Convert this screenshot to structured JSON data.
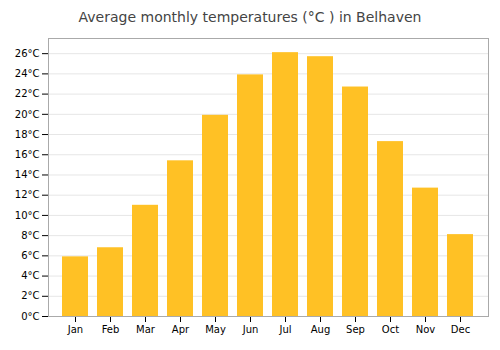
{
  "chart_data": {
    "type": "bar",
    "title": "Average monthly temperatures (°C ) in Belhaven",
    "categories": [
      "Jan",
      "Feb",
      "Mar",
      "Apr",
      "May",
      "Jun",
      "Jul",
      "Aug",
      "Sep",
      "Oct",
      "Nov",
      "Dec"
    ],
    "values": [
      5.9,
      6.8,
      11.0,
      15.4,
      19.9,
      23.9,
      26.1,
      25.7,
      22.7,
      17.3,
      12.7,
      8.1
    ],
    "color": "#FFC125",
    "ylim": [
      0,
      27.5
    ],
    "yticks": [
      {
        "value": 0,
        "label": "0°C"
      },
      {
        "value": 2,
        "label": "2°C"
      },
      {
        "value": 4,
        "label": "4°C"
      },
      {
        "value": 6,
        "label": "6°C"
      },
      {
        "value": 8,
        "label": "8°C"
      },
      {
        "value": 10,
        "label": "10°C"
      },
      {
        "value": 12,
        "label": "12°C"
      },
      {
        "value": 14,
        "label": "14°C"
      },
      {
        "value": 16,
        "label": "16°C"
      },
      {
        "value": 18,
        "label": "18°C"
      },
      {
        "value": 20,
        "label": "20°C"
      },
      {
        "value": 22,
        "label": "22°C"
      },
      {
        "value": 24,
        "label": "24°C"
      },
      {
        "value": 26,
        "label": "26°C"
      }
    ],
    "grid": true
  }
}
